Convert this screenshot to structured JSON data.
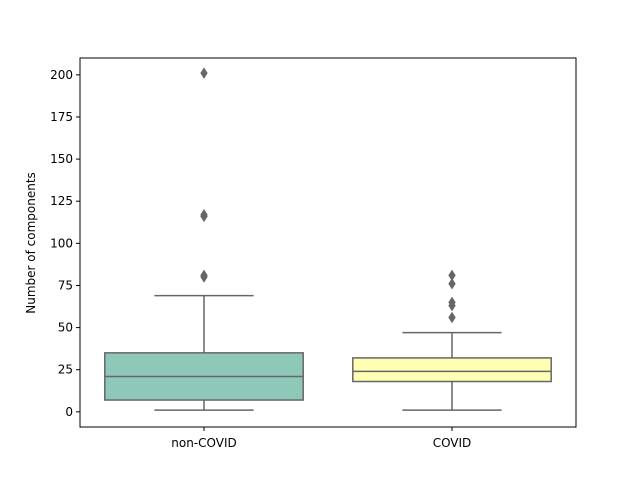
{
  "chart_data": {
    "type": "box",
    "title": "",
    "xlabel": "",
    "ylabel": "Number of components",
    "ylim": [
      -9,
      210
    ],
    "yticks": [
      0,
      25,
      50,
      75,
      100,
      125,
      150,
      175,
      200
    ],
    "categories": [
      "non-COVID",
      "COVID"
    ],
    "series": [
      {
        "category": "non-COVID",
        "color": "#8dc8b9",
        "min": 1,
        "q1": 7,
        "median": 21,
        "q3": 35,
        "max": 69,
        "outliers": [
          80,
          81,
          116,
          117,
          201
        ]
      },
      {
        "category": "COVID",
        "color": "#ffffb3",
        "min": 1,
        "q1": 18,
        "median": 24,
        "q3": 32,
        "max": 47,
        "outliers": [
          56,
          63,
          65,
          76,
          81
        ]
      }
    ],
    "grid": false,
    "edge_color": "#666666"
  }
}
